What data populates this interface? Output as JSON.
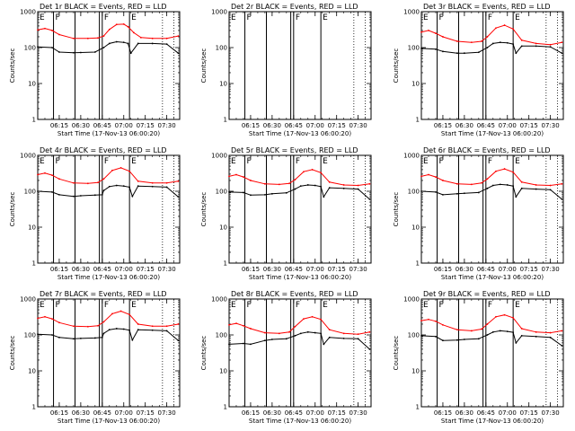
{
  "chart_data": {
    "type": "line",
    "layout": "3x3 grid of log-scale time series panels",
    "x_tick_labels": [
      "06:15",
      "06:30",
      "06:45",
      "07:00",
      "07:15",
      "07:30"
    ],
    "x_ticks_minutes": [
      15,
      30,
      45,
      60,
      75,
      90
    ],
    "xlim_minutes": [
      0,
      99
    ],
    "xlabel": "Start Time (17-Nov-13 06:00:20)",
    "ylabel": "Counts/sec",
    "yscale": "log",
    "ylim": [
      1,
      1000
    ],
    "y_tick_labels": [
      "1",
      "10",
      "100",
      "1000"
    ],
    "series_colors": {
      "Events": "#000000",
      "LLD": "#ff0000"
    },
    "segment_markers": {
      "solid_lines_minutes": [
        11,
        26,
        43,
        45,
        64
      ],
      "dotted_lines_minutes": [
        87,
        95
      ],
      "labels": [
        {
          "text": "E",
          "minute": 0
        },
        {
          "text": "F",
          "minute": 11
        },
        {
          "text": "F",
          "minute": 45
        },
        {
          "text": "E",
          "minute": 64
        }
      ]
    },
    "panels": [
      {
        "title": "Det 1r BLACK = Events, RED = LLD",
        "has_data": true,
        "series": [
          {
            "name": "Events",
            "x": [
              0,
              10,
              15,
              25,
              30,
              40,
              46,
              50,
              55,
              60,
              63,
              65,
              70,
              80,
              90,
              98
            ],
            "y": [
              105,
              100,
              75,
              72,
              73,
              75,
              100,
              130,
              145,
              140,
              130,
              70,
              130,
              130,
              125,
              70
            ]
          },
          {
            "name": "LLD",
            "x": [
              0,
              5,
              10,
              15,
              25,
              35,
              42,
              46,
              50,
              55,
              60,
              63,
              67,
              72,
              80,
              90,
              98
            ],
            "y": [
              310,
              340,
              300,
              230,
              180,
              180,
              185,
              210,
              320,
              440,
              450,
              380,
              260,
              190,
              180,
              180,
              210
            ]
          }
        ]
      },
      {
        "title": "Det 2r BLACK = Events, RED = LLD",
        "has_data": false,
        "series": []
      },
      {
        "title": "Det 3r BLACK = Events, RED = LLD",
        "has_data": true,
        "series": [
          {
            "name": "Events",
            "x": [
              0,
              10,
              15,
              25,
              30,
              40,
              46,
              50,
              55,
              60,
              64,
              66,
              70,
              80,
              90,
              98
            ],
            "y": [
              95,
              90,
              78,
              70,
              70,
              74,
              100,
              130,
              140,
              135,
              125,
              70,
              110,
              110,
              105,
              70
            ]
          },
          {
            "name": "LLD",
            "x": [
              0,
              5,
              10,
              15,
              25,
              35,
              42,
              46,
              52,
              58,
              64,
              70,
              80,
              90,
              98
            ],
            "y": [
              270,
              300,
              250,
              200,
              150,
              140,
              150,
              200,
              350,
              420,
              330,
              160,
              130,
              120,
              140
            ]
          }
        ]
      },
      {
        "title": "Det 4r BLACK = Events, RED = LLD",
        "has_data": true,
        "series": [
          {
            "name": "Events",
            "x": [
              0,
              10,
              15,
              25,
              30,
              40,
              45,
              46,
              50,
              55,
              60,
              64,
              66,
              70,
              80,
              90,
              98
            ],
            "y": [
              100,
              95,
              80,
              72,
              75,
              78,
              80,
              105,
              135,
              145,
              140,
              130,
              72,
              140,
              135,
              130,
              70
            ]
          },
          {
            "name": "LLD",
            "x": [
              0,
              5,
              10,
              15,
              25,
              35,
              42,
              46,
              52,
              58,
              64,
              70,
              80,
              90,
              98
            ],
            "y": [
              290,
              320,
              280,
              220,
              170,
              165,
              175,
              220,
              380,
              450,
              360,
              190,
              170,
              170,
              190
            ]
          }
        ]
      },
      {
        "title": "Det 5r BLACK = Events, RED = LLD",
        "has_data": true,
        "series": [
          {
            "name": "Events",
            "x": [
              0,
              10,
              15,
              25,
              30,
              40,
              46,
              50,
              55,
              60,
              64,
              66,
              70,
              80,
              90,
              98
            ],
            "y": [
              95,
              92,
              78,
              80,
              85,
              90,
              115,
              140,
              150,
              145,
              135,
              70,
              125,
              120,
              115,
              60
            ]
          },
          {
            "name": "LLD",
            "x": [
              0,
              5,
              10,
              15,
              25,
              35,
              42,
              46,
              52,
              58,
              64,
              70,
              80,
              90,
              98
            ],
            "y": [
              260,
              290,
              250,
              200,
              160,
              155,
              165,
              210,
              350,
              400,
              330,
              180,
              150,
              145,
              160
            ]
          }
        ]
      },
      {
        "title": "Det 6r BLACK = Events, RED = LLD",
        "has_data": true,
        "series": [
          {
            "name": "Events",
            "x": [
              0,
              10,
              15,
              25,
              30,
              40,
              46,
              50,
              55,
              60,
              64,
              66,
              70,
              80,
              90,
              98
            ],
            "y": [
              100,
              95,
              80,
              85,
              88,
              92,
              120,
              145,
              155,
              150,
              140,
              70,
              120,
              115,
              110,
              60
            ]
          },
          {
            "name": "LLD",
            "x": [
              0,
              5,
              10,
              15,
              25,
              35,
              42,
              46,
              52,
              58,
              64,
              70,
              80,
              90,
              98
            ],
            "y": [
              260,
              290,
              250,
              200,
              160,
              155,
              170,
              220,
              360,
              420,
              340,
              180,
              150,
              145,
              160
            ]
          }
        ]
      },
      {
        "title": "Det 7r BLACK = Events, RED = LLD",
        "has_data": true,
        "series": [
          {
            "name": "Events",
            "x": [
              0,
              10,
              15,
              25,
              30,
              40,
              45,
              46,
              50,
              55,
              60,
              64,
              66,
              70,
              80,
              90,
              98
            ],
            "y": [
              105,
              100,
              85,
              78,
              80,
              82,
              85,
              110,
              140,
              150,
              145,
              135,
              72,
              140,
              135,
              130,
              70
            ]
          },
          {
            "name": "LLD",
            "x": [
              0,
              5,
              10,
              15,
              25,
              35,
              42,
              46,
              52,
              58,
              64,
              70,
              80,
              90,
              98
            ],
            "y": [
              290,
              320,
              280,
              220,
              175,
              170,
              180,
              230,
              390,
              460,
              370,
              200,
              175,
              175,
              200
            ]
          }
        ]
      },
      {
        "title": "Det 8r BLACK = Events, RED = LLD",
        "has_data": true,
        "series": [
          {
            "name": "Events",
            "x": [
              0,
              10,
              15,
              25,
              30,
              40,
              46,
              50,
              55,
              60,
              64,
              66,
              70,
              80,
              90,
              98
            ],
            "y": [
              55,
              58,
              55,
              70,
              75,
              78,
              95,
              110,
              120,
              115,
              110,
              55,
              85,
              80,
              78,
              40
            ]
          },
          {
            "name": "LLD",
            "x": [
              0,
              5,
              10,
              15,
              25,
              35,
              42,
              46,
              52,
              58,
              64,
              70,
              80,
              90,
              98
            ],
            "y": [
              190,
              210,
              180,
              150,
              115,
              110,
              120,
              170,
              280,
              320,
              270,
              140,
              110,
              105,
              120
            ]
          }
        ]
      },
      {
        "title": "Det 9r BLACK = Events, RED = LLD",
        "has_data": true,
        "series": [
          {
            "name": "Events",
            "x": [
              0,
              10,
              15,
              25,
              30,
              40,
              46,
              50,
              55,
              60,
              64,
              66,
              70,
              80,
              90,
              98
            ],
            "y": [
              95,
              90,
              70,
              72,
              75,
              78,
              100,
              120,
              130,
              125,
              118,
              60,
              95,
              90,
              85,
              50
            ]
          },
          {
            "name": "LLD",
            "x": [
              0,
              5,
              10,
              15,
              25,
              35,
              42,
              46,
              52,
              58,
              64,
              70,
              80,
              90,
              98
            ],
            "y": [
              250,
              270,
              240,
              190,
              140,
              130,
              145,
              200,
              320,
              360,
              300,
              150,
              120,
              115,
              130
            ]
          }
        ]
      }
    ]
  }
}
